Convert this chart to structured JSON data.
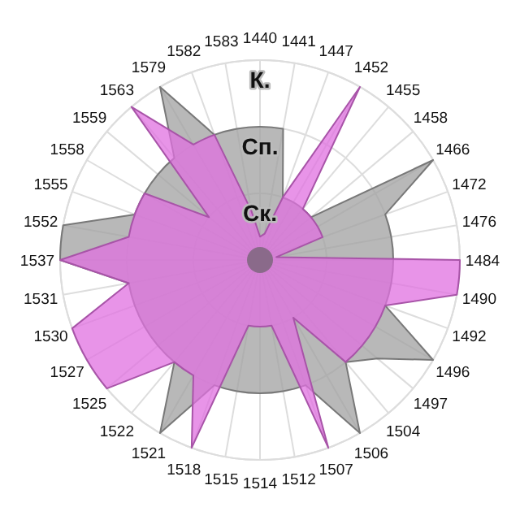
{
  "chart_data": {
    "type": "radar",
    "categories": [
      "1440",
      "1441",
      "1447",
      "1452",
      "1455",
      "1458",
      "1466",
      "1472",
      "1476",
      "1484",
      "1490",
      "1492",
      "1496",
      "1497",
      "1504",
      "1506",
      "1507",
      "1512",
      "1514",
      "1515",
      "1518",
      "1521",
      "1522",
      "1525",
      "1527",
      "1530",
      "1531",
      "1537",
      "1552",
      "1555",
      "1558",
      "1559",
      "1563",
      "1579",
      "1582",
      "1583"
    ],
    "ylim": [
      0,
      3
    ],
    "yticks": [
      {
        "value": 1,
        "label": "Ск."
      },
      {
        "value": 2,
        "label": "Сп."
      },
      {
        "value": 3,
        "label": "К."
      }
    ],
    "grid": true,
    "series": [
      {
        "color": "#a0a0a0",
        "values": [
          2,
          2,
          1,
          1,
          1,
          1,
          3,
          2,
          2,
          2,
          2,
          2,
          3,
          2.3,
          2,
          3,
          2,
          2,
          2,
          2,
          2,
          3,
          2,
          2,
          2,
          2,
          2,
          3,
          3,
          2,
          2,
          2,
          2,
          3,
          2,
          2
        ]
      },
      {
        "color": "#e070e0",
        "values": [
          0.35,
          0.4,
          1,
          3,
          1,
          1,
          1,
          1,
          0.25,
          3,
          3,
          2,
          2,
          2,
          2,
          1,
          3,
          1,
          1,
          1,
          3,
          2,
          2,
          3,
          3,
          3,
          2,
          3,
          2,
          2,
          2,
          1,
          3,
          2,
          2,
          0.75
        ]
      }
    ]
  }
}
